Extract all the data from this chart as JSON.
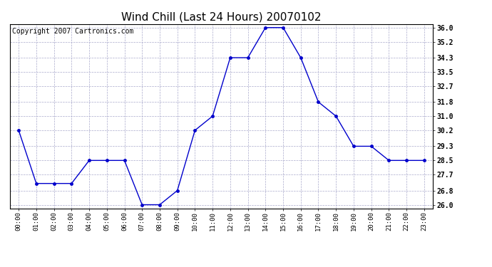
{
  "title": "Wind Chill (Last 24 Hours) 20070102",
  "copyright": "Copyright 2007 Cartronics.com",
  "x_labels": [
    "00:00",
    "01:00",
    "02:00",
    "03:00",
    "04:00",
    "05:00",
    "06:00",
    "07:00",
    "08:00",
    "09:00",
    "10:00",
    "11:00",
    "12:00",
    "13:00",
    "14:00",
    "15:00",
    "16:00",
    "17:00",
    "18:00",
    "19:00",
    "20:00",
    "21:00",
    "22:00",
    "23:00"
  ],
  "y_values": [
    30.2,
    27.2,
    27.2,
    27.2,
    28.5,
    28.5,
    28.5,
    26.0,
    26.0,
    26.8,
    30.2,
    31.0,
    34.3,
    34.3,
    36.0,
    36.0,
    34.3,
    31.8,
    31.0,
    29.3,
    29.3,
    28.5,
    28.5,
    28.5
  ],
  "y_ticks": [
    26.0,
    26.8,
    27.7,
    28.5,
    29.3,
    30.2,
    31.0,
    31.8,
    32.7,
    33.5,
    34.3,
    35.2,
    36.0
  ],
  "ylim": [
    25.8,
    36.2
  ],
  "line_color": "#0000cc",
  "marker": "o",
  "marker_size": 2.5,
  "bg_color": "#ffffff",
  "plot_bg": "#ffffff",
  "grid_color": "#aaaacc",
  "title_fontsize": 11,
  "copyright_fontsize": 7
}
